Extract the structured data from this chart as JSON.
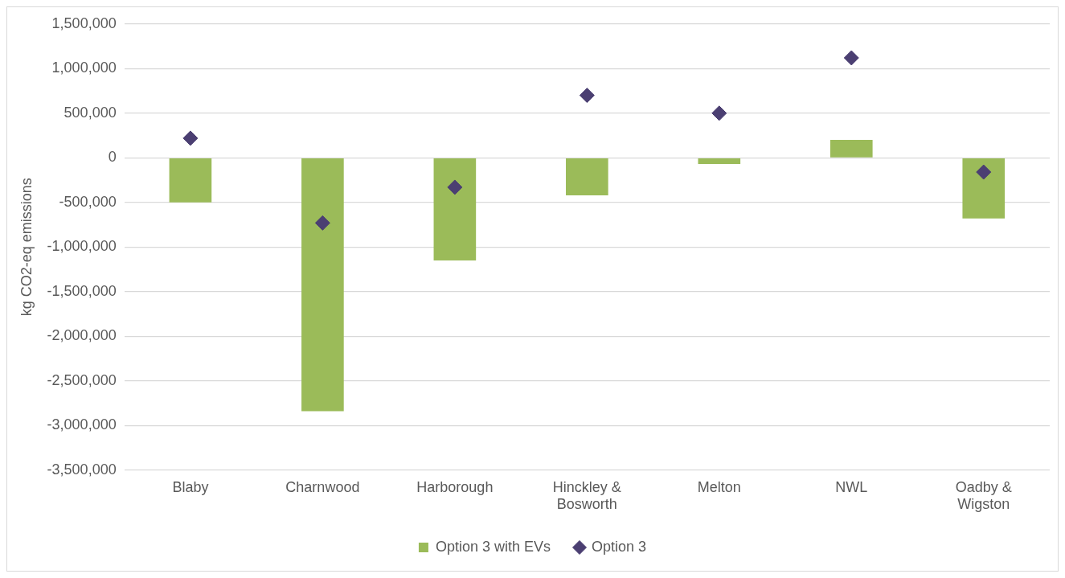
{
  "chart_data": {
    "type": "bar",
    "ylabel": "kg CO2-eq emissions",
    "categories": [
      "Blaby",
      "Charnwood",
      "Harborough",
      "Hinckley & Bosworth",
      "Melton",
      "NWL",
      "Oadby & Wigston"
    ],
    "series": [
      {
        "name": "Option 3 with EVs",
        "color": "#9bbb59",
        "values": [
          -500000,
          -2840000,
          -1150000,
          -420000,
          -70000,
          200000,
          -680000
        ]
      },
      {
        "name": "Option 3",
        "type": "scatter",
        "color": "#4b3f72",
        "x": [
          "Blaby",
          "Charnwood",
          "Harborough",
          "Hinckley & Bosworth",
          "Melton",
          "NWL",
          "Oadby & Wigston"
        ],
        "values": [
          220000,
          -730000,
          -330000,
          700000,
          500000,
          1120000,
          -160000
        ]
      }
    ],
    "ylim": [
      -3500000,
      1500000
    ],
    "yticks": [
      {
        "value": -3500000,
        "label": "-3,500,000"
      },
      {
        "value": -3000000,
        "label": "-3,000,000"
      },
      {
        "value": -2500000,
        "label": "-2,500,000"
      },
      {
        "value": -2000000,
        "label": "-2,000,000"
      },
      {
        "value": -1500000,
        "label": "-1,500,000"
      },
      {
        "value": -1000000,
        "label": "-1,000,000"
      },
      {
        "value": -500000,
        "label": "-500,000"
      },
      0,
      {
        "value": 500000,
        "label": "500,000"
      },
      {
        "value": 1000000,
        "label": "1,000,000"
      },
      {
        "value": 1500000,
        "label": "1,500,000"
      }
    ],
    "grid": "y",
    "legend": "bottom",
    "marker": "diamond"
  }
}
